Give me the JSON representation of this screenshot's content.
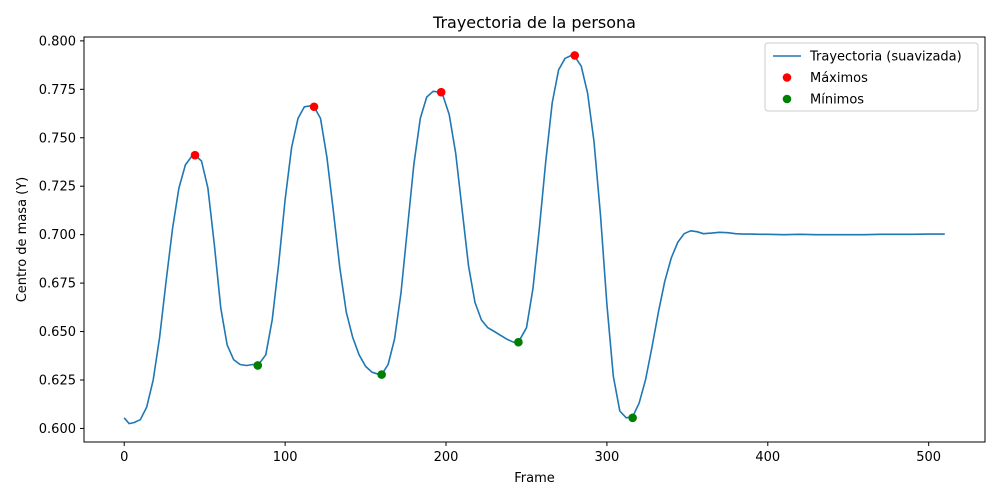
{
  "chart_data": {
    "type": "line",
    "title": "Trayectoria de la persona",
    "xlabel": "Frame",
    "ylabel": "Centro de masa (Y)",
    "xlim": [
      -25,
      535
    ],
    "ylim": [
      0.593,
      0.802
    ],
    "xticks": [
      0,
      100,
      200,
      300,
      400,
      500
    ],
    "yticks": [
      0.6,
      0.625,
      0.65,
      0.675,
      0.7,
      0.725,
      0.75,
      0.775,
      0.8
    ],
    "ytick_labels": [
      "0.600",
      "0.625",
      "0.650",
      "0.675",
      "0.700",
      "0.725",
      "0.750",
      "0.775",
      "0.800"
    ],
    "grid": false,
    "legend_position": "top-right",
    "series": [
      {
        "name": "Trayectoria (suavizada)",
        "color": "#1f77b4",
        "style": "line",
        "x": [
          0,
          3,
          6,
          10,
          14,
          18,
          22,
          26,
          30,
          34,
          38,
          42,
          44,
          48,
          52,
          56,
          60,
          64,
          68,
          72,
          76,
          80,
          83,
          88,
          92,
          96,
          100,
          104,
          108,
          112,
          116,
          118,
          122,
          126,
          130,
          134,
          138,
          142,
          146,
          150,
          154,
          158,
          160,
          164,
          168,
          172,
          176,
          180,
          184,
          188,
          192,
          196,
          198,
          202,
          206,
          210,
          214,
          218,
          222,
          226,
          230,
          234,
          238,
          242,
          245,
          250,
          254,
          258,
          262,
          266,
          270,
          274,
          278,
          280,
          284,
          288,
          292,
          296,
          300,
          304,
          308,
          312,
          316,
          320,
          324,
          328,
          332,
          336,
          340,
          344,
          348,
          352,
          356,
          360,
          365,
          370,
          375,
          380,
          385,
          390,
          395,
          400,
          410,
          420,
          430,
          440,
          450,
          460,
          470,
          480,
          490,
          500,
          510
        ],
        "y": [
          0.6055,
          0.6025,
          0.603,
          0.6045,
          0.611,
          0.625,
          0.647,
          0.676,
          0.703,
          0.724,
          0.736,
          0.7405,
          0.741,
          0.738,
          0.724,
          0.695,
          0.662,
          0.643,
          0.6355,
          0.633,
          0.6325,
          0.633,
          0.6325,
          0.638,
          0.656,
          0.685,
          0.718,
          0.745,
          0.76,
          0.766,
          0.7665,
          0.766,
          0.76,
          0.74,
          0.712,
          0.683,
          0.66,
          0.647,
          0.638,
          0.632,
          0.629,
          0.628,
          0.6278,
          0.633,
          0.646,
          0.67,
          0.703,
          0.736,
          0.76,
          0.771,
          0.774,
          0.7735,
          0.772,
          0.762,
          0.742,
          0.713,
          0.684,
          0.665,
          0.656,
          0.652,
          0.65,
          0.648,
          0.646,
          0.6445,
          0.6445,
          0.652,
          0.672,
          0.703,
          0.738,
          0.768,
          0.785,
          0.791,
          0.7925,
          0.792,
          0.787,
          0.773,
          0.748,
          0.71,
          0.664,
          0.627,
          0.609,
          0.6055,
          0.606,
          0.613,
          0.625,
          0.642,
          0.66,
          0.676,
          0.688,
          0.696,
          0.7005,
          0.702,
          0.7015,
          0.7005,
          0.7008,
          0.7012,
          0.701,
          0.7005,
          0.7003,
          0.7003,
          0.7002,
          0.7002,
          0.7,
          0.7002,
          0.7,
          0.7,
          0.7,
          0.7,
          0.7002,
          0.7002,
          0.7002,
          0.7003,
          0.7003
        ]
      },
      {
        "name": "Máximos",
        "color": "#ff0000",
        "style": "marker",
        "x": [
          44,
          118,
          197,
          280
        ],
        "y": [
          0.741,
          0.766,
          0.7735,
          0.7925
        ]
      },
      {
        "name": "Mínimos",
        "color": "#008000",
        "style": "marker",
        "x": [
          83,
          160,
          245,
          316
        ],
        "y": [
          0.6325,
          0.6278,
          0.6445,
          0.6055
        ]
      }
    ]
  }
}
